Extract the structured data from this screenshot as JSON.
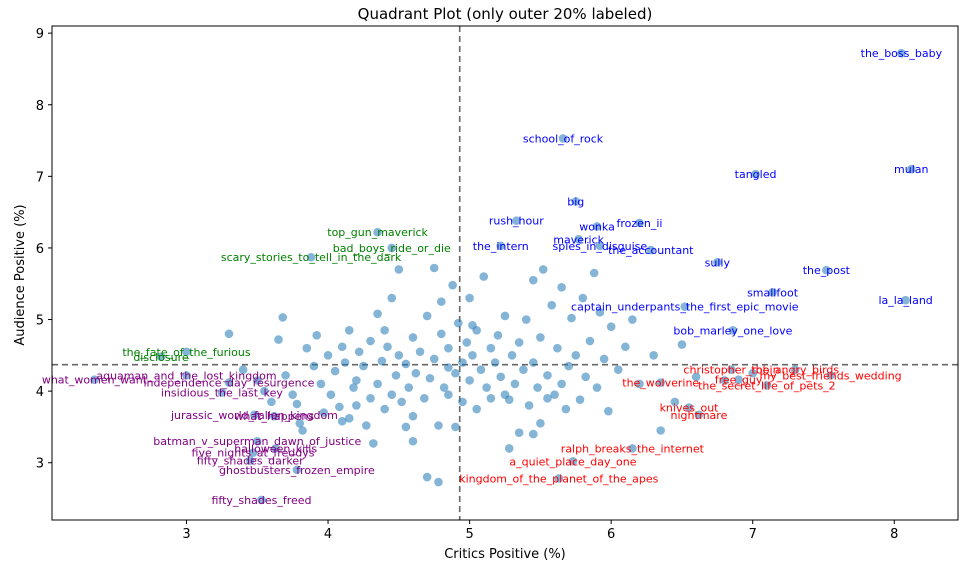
{
  "chart_data": {
    "type": "scatter",
    "title": "Quadrant Plot (only outer 20% labeled)",
    "xlabel": "Critics Positive (%)",
    "ylabel": "Audience Positive (%)",
    "xlim": [
      2.05,
      8.45
    ],
    "ylim": [
      2.2,
      9.1
    ],
    "xticks": [
      3,
      4,
      5,
      6,
      7,
      8
    ],
    "yticks": [
      3,
      4,
      5,
      6,
      7,
      8,
      9
    ],
    "x_divider": 4.93,
    "y_divider": 4.37,
    "point_color": "#1f77b4",
    "quadrant_colors": {
      "top_right": "#0000ff",
      "top_left": "#008000",
      "bottom_left": "#800080",
      "bottom_right": "#ff0000"
    },
    "labeled_points": [
      {
        "label": "the_boss_baby",
        "x": 8.05,
        "y": 8.72,
        "q": "top_right"
      },
      {
        "label": "school_of_rock",
        "x": 5.66,
        "y": 7.53,
        "q": "top_right"
      },
      {
        "label": "tangled",
        "x": 7.02,
        "y": 7.03,
        "q": "top_right"
      },
      {
        "label": "mulan",
        "x": 8.12,
        "y": 7.1,
        "q": "top_right"
      },
      {
        "label": "big",
        "x": 5.75,
        "y": 6.65,
        "q": "top_right"
      },
      {
        "label": "rush_hour",
        "x": 5.33,
        "y": 6.38,
        "q": "top_right"
      },
      {
        "label": "wonka",
        "x": 5.9,
        "y": 6.3,
        "q": "top_right"
      },
      {
        "label": "frozen_ii",
        "x": 6.2,
        "y": 6.35,
        "q": "top_right"
      },
      {
        "label": "maverick",
        "x": 5.77,
        "y": 6.12,
        "q": "top_right"
      },
      {
        "label": "the_intern",
        "x": 5.22,
        "y": 6.03,
        "q": "top_right"
      },
      {
        "label": "spies_in_disguise",
        "x": 5.92,
        "y": 6.03,
        "q": "top_right"
      },
      {
        "label": "the_accountant",
        "x": 6.28,
        "y": 5.97,
        "q": "top_right"
      },
      {
        "label": "sully",
        "x": 6.75,
        "y": 5.8,
        "q": "top_right"
      },
      {
        "label": "the_post",
        "x": 7.52,
        "y": 5.69,
        "q": "top_right"
      },
      {
        "label": "smallfoot",
        "x": 7.14,
        "y": 5.38,
        "q": "top_right"
      },
      {
        "label": "la_la_land",
        "x": 8.08,
        "y": 5.27,
        "q": "top_right"
      },
      {
        "label": "captain_underpants_the_first_epic_movie",
        "x": 6.52,
        "y": 5.18,
        "q": "top_right"
      },
      {
        "label": "bob_marley_one_love",
        "x": 6.86,
        "y": 4.85,
        "q": "top_right"
      },
      {
        "label": "top_gun_maverick",
        "x": 4.35,
        "y": 6.22,
        "q": "top_left"
      },
      {
        "label": "bad_boys_ride_or_die",
        "x": 4.45,
        "y": 6.0,
        "q": "top_left"
      },
      {
        "label": "scary_stories_to_tell_in_the_dark",
        "x": 3.88,
        "y": 5.87,
        "q": "top_left"
      },
      {
        "label": "the_fate_of_the_furious",
        "x": 3.0,
        "y": 4.55,
        "q": "top_left"
      },
      {
        "label": "disclosure",
        "x": 2.82,
        "y": 4.48,
        "q": "top_left"
      },
      {
        "label": "what_women_want",
        "x": 2.35,
        "y": 4.16,
        "q": "bottom_left"
      },
      {
        "label": "aquaman_and_the_lost_kingdom",
        "x": 3.0,
        "y": 4.22,
        "q": "bottom_left"
      },
      {
        "label": "independence_day_resurgence",
        "x": 3.3,
        "y": 4.12,
        "q": "bottom_left"
      },
      {
        "label": "insidious_the_last_key",
        "x": 3.25,
        "y": 3.98,
        "q": "bottom_left"
      },
      {
        "label": "jurassic_world_fallen_kingdom",
        "x": 3.48,
        "y": 3.67,
        "q": "bottom_left"
      },
      {
        "label": "what_happens",
        "x": 3.62,
        "y": 3.65,
        "q": "bottom_left"
      },
      {
        "label": "batman_v_superman_dawn_of_justice",
        "x": 3.5,
        "y": 3.3,
        "q": "bottom_left"
      },
      {
        "label": "halloween_kills",
        "x": 3.63,
        "y": 3.2,
        "q": "bottom_left"
      },
      {
        "label": "five_nights_at_freddys",
        "x": 3.47,
        "y": 3.14,
        "q": "bottom_left"
      },
      {
        "label": "fifty_shades_darker",
        "x": 3.45,
        "y": 3.03,
        "q": "bottom_left"
      },
      {
        "label": "ghostbusters_frozen_empire",
        "x": 3.78,
        "y": 2.9,
        "q": "bottom_left"
      },
      {
        "label": "fifty_shades_freed",
        "x": 3.53,
        "y": 2.48,
        "q": "bottom_left"
      },
      {
        "label": "christopher_robin",
        "x": 6.85,
        "y": 4.3,
        "q": "bottom_right"
      },
      {
        "label": "the_angry_birds",
        "x": 7.3,
        "y": 4.3,
        "q": "bottom_right"
      },
      {
        "label": "my_best_friends_wedding",
        "x": 7.55,
        "y": 4.22,
        "q": "bottom_right"
      },
      {
        "label": "the_wolverine",
        "x": 6.35,
        "y": 4.12,
        "q": "bottom_right"
      },
      {
        "label": "free_guy",
        "x": 6.9,
        "y": 4.16,
        "q": "bottom_right"
      },
      {
        "label": "the_secret_life_of_pets_2",
        "x": 7.1,
        "y": 4.08,
        "q": "bottom_right"
      },
      {
        "label": "knives_out",
        "x": 6.55,
        "y": 3.77,
        "q": "bottom_right"
      },
      {
        "label": "nightmare",
        "x": 6.62,
        "y": 3.67,
        "q": "bottom_right"
      },
      {
        "label": "ralph_breaks_the_internet",
        "x": 6.15,
        "y": 3.2,
        "q": "bottom_right"
      },
      {
        "label": "a_quiet_place_day_one",
        "x": 5.73,
        "y": 3.02,
        "q": "bottom_right"
      },
      {
        "label": "kingdom_of_the_planet_of_the_apes",
        "x": 5.63,
        "y": 2.78,
        "q": "bottom_right"
      }
    ],
    "unlabeled_points": [
      [
        3.3,
        4.8
      ],
      [
        3.4,
        4.3
      ],
      [
        3.5,
        4.15
      ],
      [
        3.55,
        4.0
      ],
      [
        3.6,
        3.85
      ],
      [
        3.65,
        4.72
      ],
      [
        3.68,
        5.03
      ],
      [
        3.7,
        4.22
      ],
      [
        3.75,
        3.95
      ],
      [
        3.78,
        3.82
      ],
      [
        3.8,
        3.55
      ],
      [
        3.82,
        3.45
      ],
      [
        3.85,
        4.6
      ],
      [
        3.9,
        4.35
      ],
      [
        3.92,
        4.78
      ],
      [
        3.95,
        4.1
      ],
      [
        3.97,
        3.7
      ],
      [
        4.0,
        4.5
      ],
      [
        4.02,
        3.95
      ],
      [
        4.05,
        4.28
      ],
      [
        4.08,
        3.78
      ],
      [
        4.1,
        4.62
      ],
      [
        4.12,
        4.4
      ],
      [
        4.15,
        3.62
      ],
      [
        4.15,
        4.85
      ],
      [
        4.18,
        4.05
      ],
      [
        4.2,
        3.8
      ],
      [
        4.22,
        4.55
      ],
      [
        4.25,
        4.35
      ],
      [
        4.27,
        3.52
      ],
      [
        4.3,
        3.9
      ],
      [
        4.3,
        4.7
      ],
      [
        4.32,
        3.27
      ],
      [
        4.35,
        4.1
      ],
      [
        4.35,
        5.08
      ],
      [
        4.38,
        4.42
      ],
      [
        4.4,
        3.75
      ],
      [
        4.42,
        4.62
      ],
      [
        4.45,
        5.3
      ],
      [
        4.45,
        3.95
      ],
      [
        4.48,
        4.22
      ],
      [
        4.5,
        4.5
      ],
      [
        4.5,
        5.7
      ],
      [
        4.52,
        3.85
      ],
      [
        4.55,
        4.38
      ],
      [
        4.57,
        4.05
      ],
      [
        4.6,
        4.75
      ],
      [
        4.6,
        3.65
      ],
      [
        4.62,
        4.25
      ],
      [
        4.65,
        4.55
      ],
      [
        4.68,
        3.9
      ],
      [
        4.7,
        5.05
      ],
      [
        4.72,
        4.18
      ],
      [
        4.75,
        5.72
      ],
      [
        4.75,
        4.45
      ],
      [
        4.78,
        3.52
      ],
      [
        4.8,
        4.8
      ],
      [
        4.8,
        5.25
      ],
      [
        4.82,
        4.05
      ],
      [
        4.85,
        4.6
      ],
      [
        4.85,
        3.95
      ],
      [
        4.88,
        5.48
      ],
      [
        4.9,
        4.25
      ],
      [
        4.9,
        3.5
      ],
      [
        4.92,
        4.95
      ],
      [
        4.95,
        4.4
      ],
      [
        4.95,
        3.85
      ],
      [
        4.98,
        4.68
      ],
      [
        5.0,
        4.15
      ],
      [
        5.0,
        5.3
      ],
      [
        5.02,
        4.5
      ],
      [
        5.05,
        3.75
      ],
      [
        5.05,
        4.85
      ],
      [
        5.08,
        4.3
      ],
      [
        5.1,
        5.6
      ],
      [
        5.12,
        4.05
      ],
      [
        5.15,
        4.6
      ],
      [
        5.15,
        3.9
      ],
      [
        5.18,
        4.4
      ],
      [
        5.2,
        4.78
      ],
      [
        5.22,
        4.2
      ],
      [
        5.25,
        3.95
      ],
      [
        5.25,
        5.05
      ],
      [
        5.28,
        3.2
      ],
      [
        5.3,
        4.5
      ],
      [
        5.32,
        4.1
      ],
      [
        5.35,
        4.68
      ],
      [
        5.35,
        3.42
      ],
      [
        5.38,
        4.3
      ],
      [
        5.4,
        5.0
      ],
      [
        5.42,
        3.8
      ],
      [
        5.45,
        4.4
      ],
      [
        5.45,
        5.55
      ],
      [
        5.48,
        4.05
      ],
      [
        5.5,
        4.75
      ],
      [
        5.5,
        3.55
      ],
      [
        5.52,
        5.7
      ],
      [
        5.55,
        4.22
      ],
      [
        5.58,
        5.2
      ],
      [
        5.6,
        3.95
      ],
      [
        5.62,
        4.6
      ],
      [
        5.65,
        4.1
      ],
      [
        5.65,
        5.45
      ],
      [
        5.68,
        3.75
      ],
      [
        5.7,
        4.35
      ],
      [
        5.72,
        5.02
      ],
      [
        5.75,
        4.5
      ],
      [
        5.78,
        3.88
      ],
      [
        5.8,
        5.3
      ],
      [
        5.82,
        4.2
      ],
      [
        5.85,
        4.7
      ],
      [
        5.88,
        5.65
      ],
      [
        5.9,
        4.05
      ],
      [
        5.92,
        5.1
      ],
      [
        5.95,
        4.45
      ],
      [
        5.98,
        3.72
      ],
      [
        6.0,
        4.9
      ],
      [
        6.05,
        4.3
      ],
      [
        6.1,
        4.62
      ],
      [
        6.15,
        5.0
      ],
      [
        6.2,
        4.1
      ],
      [
        6.3,
        4.5
      ],
      [
        6.35,
        3.45
      ],
      [
        6.45,
        3.85
      ],
      [
        6.5,
        4.65
      ],
      [
        6.6,
        4.2
      ],
      [
        6.8,
        4.15
      ],
      [
        7.0,
        4.25
      ],
      [
        4.2,
        4.15
      ],
      [
        4.6,
        3.3
      ],
      [
        4.7,
        2.8
      ],
      [
        4.78,
        2.73
      ],
      [
        5.02,
        4.92
      ],
      [
        5.28,
        3.88
      ],
      [
        5.45,
        3.4
      ],
      [
        5.55,
        3.9
      ],
      [
        4.55,
        3.5
      ],
      [
        4.1,
        3.58
      ],
      [
        4.4,
        4.85
      ],
      [
        4.85,
        4.33
      ]
    ]
  }
}
